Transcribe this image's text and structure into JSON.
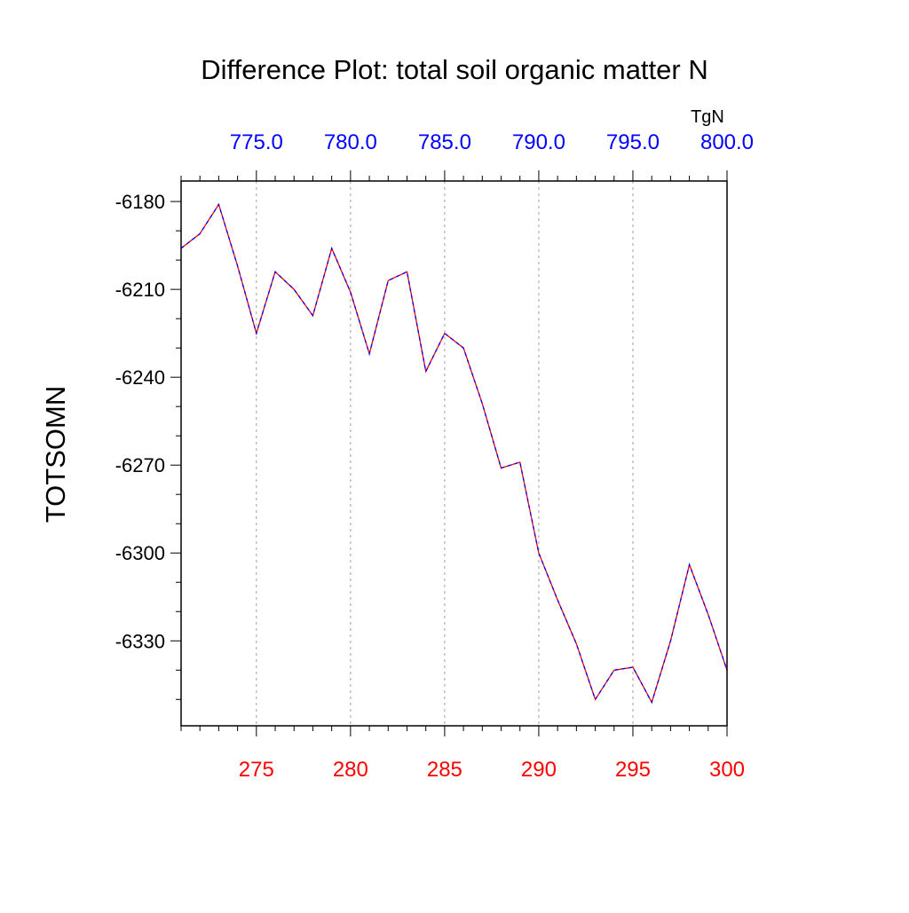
{
  "chart_data": {
    "type": "line",
    "title": "Difference Plot: total soil organic matter N",
    "ylabel": "TOTSOMN",
    "top_axis_units": "TgN",
    "xlim": [
      271,
      300
    ],
    "ylim": [
      -6359,
      -6173
    ],
    "x_ticks": [
      275,
      280,
      285,
      290,
      295,
      300
    ],
    "x_tick_labels": [
      "275",
      "280",
      "285",
      "290",
      "295",
      "300"
    ],
    "x_tick_color": "#ff0000",
    "top_ticks": [
      275,
      280,
      285,
      290,
      295,
      300
    ],
    "top_tick_labels": [
      "775.0",
      "780.0",
      "785.0",
      "790.0",
      "795.0",
      "800.0"
    ],
    "top_tick_color": "#0000ff",
    "y_ticks": [
      -6180,
      -6210,
      -6240,
      -6270,
      -6300,
      -6330
    ],
    "y_tick_labels": [
      "-6180",
      "-6210",
      "-6240",
      "-6270",
      "-6300",
      "-6330"
    ],
    "grid": "vertical dashed at major x ticks",
    "series": [
      {
        "line_colors": [
          "#ff0000",
          "#0000ff"
        ],
        "dash": "dashed",
        "x": [
          271,
          272,
          273,
          274,
          275,
          276,
          277,
          278,
          279,
          280,
          281,
          282,
          283,
          284,
          285,
          286,
          287,
          288,
          289,
          290,
          291,
          292,
          293,
          294,
          295,
          296,
          297,
          298,
          299,
          300
        ],
        "values": [
          -6196,
          -6191,
          -6181,
          -6202,
          -6225,
          -6204,
          -6210,
          -6219,
          -6196,
          -6211,
          -6232,
          -6207,
          -6204,
          -6238,
          -6225,
          -6230,
          -6249,
          -6271,
          -6269,
          -6300,
          -6316,
          -6331,
          -6350,
          -6340,
          -6339,
          -6351,
          -6330,
          -6304,
          -6321,
          -6340
        ]
      }
    ]
  }
}
